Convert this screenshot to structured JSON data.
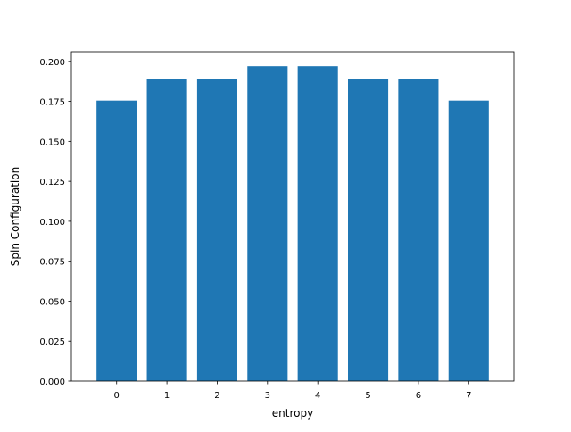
{
  "chart_data": {
    "type": "bar",
    "title": "",
    "xlabel": "entropy",
    "ylabel": "Spin Configuration",
    "categories": [
      "0",
      "1",
      "2",
      "3",
      "4",
      "5",
      "6",
      "7"
    ],
    "values": [
      0.1755,
      0.189,
      0.189,
      0.197,
      0.197,
      0.189,
      0.189,
      0.1755
    ],
    "ylim": [
      0,
      0.2
    ],
    "yticks": [
      "0.000",
      "0.025",
      "0.050",
      "0.075",
      "0.100",
      "0.125",
      "0.150",
      "0.175",
      "0.200"
    ],
    "bar_color": "#1f77b4",
    "grid": false,
    "legend": "none"
  }
}
